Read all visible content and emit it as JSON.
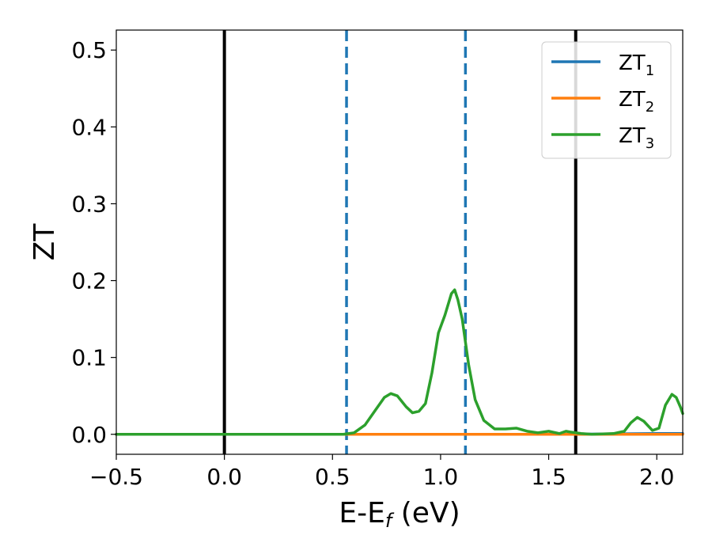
{
  "chart_data": {
    "type": "line",
    "xlabel": "E-E",
    "xlabel_subscript": "f",
    "xlabel_unit": " (eV)",
    "ylabel": "ZT",
    "xlim": [
      -0.5,
      2.12
    ],
    "ylim": [
      -0.026,
      0.526
    ],
    "xticks": [
      -0.5,
      0.0,
      0.5,
      1.0,
      1.5,
      2.0
    ],
    "xtick_labels": [
      "−0.5",
      "0.0",
      "0.5",
      "1.0",
      "1.5",
      "2.0"
    ],
    "yticks": [
      0.0,
      0.1,
      0.2,
      0.3,
      0.4,
      0.5
    ],
    "ytick_labels": [
      "0.0",
      "0.1",
      "0.2",
      "0.3",
      "0.4",
      "0.5"
    ],
    "grid": false,
    "legend_position": "top-right",
    "vertical_lines": [
      {
        "x": 0.0,
        "style": "solid",
        "color": "#000000"
      },
      {
        "x": 1.625,
        "style": "solid",
        "color": "#000000"
      },
      {
        "x": 0.565,
        "style": "dashed",
        "color": "#1f77b4"
      },
      {
        "x": 1.115,
        "style": "dashed",
        "color": "#1f77b4"
      }
    ],
    "series": [
      {
        "name": "ZT",
        "subscript": "1",
        "color": "#1f77b4",
        "x": [
          -0.5,
          0.5,
          1.0,
          1.5,
          1.8,
          2.0,
          2.12
        ],
        "y": [
          0.0,
          0.0,
          0.0,
          0.0,
          0.0005,
          0.001,
          0.001
        ]
      },
      {
        "name": "ZT",
        "subscript": "2",
        "color": "#ff7f0e",
        "x": [
          -0.5,
          0.5,
          1.0,
          1.5,
          2.0,
          2.12
        ],
        "y": [
          0.0,
          0.0,
          0.0,
          0.0,
          0.0,
          0.0
        ]
      },
      {
        "name": "ZT",
        "subscript": "3",
        "color": "#2ca02c",
        "x": [
          -0.5,
          0.55,
          0.6,
          0.65,
          0.7,
          0.74,
          0.77,
          0.8,
          0.84,
          0.87,
          0.9,
          0.93,
          0.96,
          0.99,
          1.02,
          1.05,
          1.065,
          1.08,
          1.1,
          1.13,
          1.16,
          1.2,
          1.25,
          1.3,
          1.35,
          1.4,
          1.45,
          1.5,
          1.55,
          1.58,
          1.6,
          1.65,
          1.7,
          1.8,
          1.85,
          1.88,
          1.91,
          1.94,
          1.98,
          2.01,
          2.04,
          2.07,
          2.09,
          2.11,
          2.12
        ],
        "y": [
          0.0,
          0.0,
          0.002,
          0.012,
          0.032,
          0.048,
          0.053,
          0.05,
          0.036,
          0.028,
          0.03,
          0.04,
          0.08,
          0.132,
          0.155,
          0.183,
          0.188,
          0.175,
          0.15,
          0.09,
          0.045,
          0.018,
          0.007,
          0.007,
          0.008,
          0.004,
          0.002,
          0.004,
          0.001,
          0.004,
          0.003,
          0.001,
          0.0,
          0.001,
          0.004,
          0.015,
          0.022,
          0.017,
          0.005,
          0.008,
          0.038,
          0.052,
          0.048,
          0.035,
          0.027
        ]
      }
    ]
  }
}
